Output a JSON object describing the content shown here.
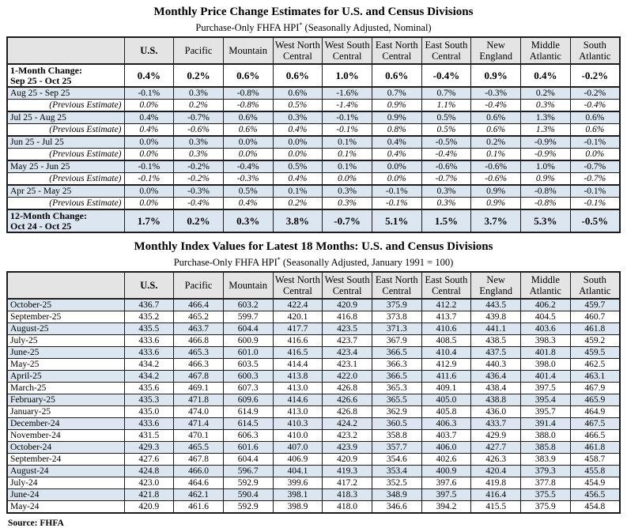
{
  "colors": {
    "header_bg": "#e4e4e4",
    "stripe_bg": "#dce6f1",
    "border": "#1c1c1c"
  },
  "source_label": "Source: FHFA",
  "columns": [
    "U.S.",
    "Pacific",
    "Mountain",
    "West North Central",
    "West South Central",
    "East North Central",
    "East South Central",
    "New England",
    "Middle Atlantic",
    "South Atlantic"
  ],
  "table1": {
    "title": "Monthly Price Change Estimates for U.S. and Census Divisions",
    "subtitle_prefix": "Purchase-Only FHFA HPI",
    "subtitle_star": "*",
    "subtitle_suffix": " (Seasonally Adjusted, Nominal)",
    "rows": [
      {
        "type": "bold",
        "label1": "1-Month Change:",
        "label2": "Sep 25 - Oct 25",
        "values": [
          "0.4%",
          "0.2%",
          "0.6%",
          "0.6%",
          "1.0%",
          "0.6%",
          "-0.4%",
          "0.9%",
          "0.4%",
          "-0.2%"
        ]
      },
      {
        "type": "month",
        "label": "Aug 25 - Sep 25",
        "values": [
          "-0.1%",
          "0.3%",
          "-0.8%",
          "0.6%",
          "-1.6%",
          "0.7%",
          "0.7%",
          "-0.3%",
          "0.2%",
          "-0.2%"
        ]
      },
      {
        "type": "prev",
        "label": "(Previous Estimate)",
        "values": [
          "0.0%",
          "0.2%",
          "-0.8%",
          "0.5%",
          "-1.4%",
          "0.9%",
          "1.1%",
          "-0.4%",
          "0.3%",
          "-0.4%"
        ]
      },
      {
        "type": "month",
        "label": "Jul 25 - Aug 25",
        "values": [
          "0.4%",
          "-0.7%",
          "0.6%",
          "0.3%",
          "-0.1%",
          "0.9%",
          "0.5%",
          "0.6%",
          "1.3%",
          "0.6%"
        ]
      },
      {
        "type": "prev",
        "label": "(Previous Estimate)",
        "values": [
          "0.4%",
          "-0.6%",
          "0.6%",
          "0.4%",
          "-0.1%",
          "0.8%",
          "0.5%",
          "0.6%",
          "1.3%",
          "0.6%"
        ]
      },
      {
        "type": "month",
        "label": "Jun 25 - Jul 25",
        "values": [
          "0.0%",
          "0.3%",
          "0.0%",
          "0.0%",
          "0.1%",
          "0.4%",
          "-0.5%",
          "0.2%",
          "-0.9%",
          "-0.1%"
        ]
      },
      {
        "type": "prev",
        "label": "(Previous Estimate)",
        "values": [
          "0.0%",
          "0.3%",
          "0.0%",
          "0.0%",
          "0.1%",
          "0.4%",
          "-0.4%",
          "0.1%",
          "-0.9%",
          "0.0%"
        ]
      },
      {
        "type": "month",
        "label": "May 25 - Jun 25",
        "values": [
          "-0.1%",
          "-0.2%",
          "-0.4%",
          "0.5%",
          "0.1%",
          "0.0%",
          "-0.6%",
          "-0.6%",
          "1.0%",
          "-0.7%"
        ]
      },
      {
        "type": "prev",
        "label": "(Previous Estimate)",
        "values": [
          "-0.1%",
          "-0.2%",
          "-0.3%",
          "0.4%",
          "0.0%",
          "0.0%",
          "-0.7%",
          "-0.6%",
          "0.9%",
          "-0.7%"
        ]
      },
      {
        "type": "month",
        "label": "Apr 25 - May 25",
        "values": [
          "0.0%",
          "-0.3%",
          "0.5%",
          "0.1%",
          "0.3%",
          "-0.1%",
          "0.3%",
          "0.9%",
          "-0.8%",
          "-0.1%"
        ]
      },
      {
        "type": "prev",
        "label": "(Previous Estimate)",
        "values": [
          "0.0%",
          "-0.4%",
          "0.4%",
          "0.2%",
          "0.3%",
          "-0.1%",
          "0.3%",
          "0.9%",
          "-0.8%",
          "-0.1%"
        ]
      },
      {
        "type": "total",
        "label1": "12-Month Change:",
        "label2": "Oct 24 - Oct 25",
        "values": [
          "1.7%",
          "0.2%",
          "0.3%",
          "3.8%",
          "-0.7%",
          "5.1%",
          "1.5%",
          "3.7%",
          "5.3%",
          "-0.5%"
        ]
      }
    ]
  },
  "table2": {
    "title": "Monthly Index Values for Latest 18 Months: U.S. and Census Divisions",
    "subtitle_prefix": "Purchase-Only FHFA HPI",
    "subtitle_star": "*",
    "subtitle_suffix": " (Seasonally Adjusted, January 1991 = 100)",
    "rows": [
      {
        "label": "October-25",
        "values": [
          "436.7",
          "466.4",
          "603.2",
          "422.4",
          "420.9",
          "375.9",
          "412.2",
          "443.5",
          "406.2",
          "459.7"
        ]
      },
      {
        "label": "September-25",
        "values": [
          "435.2",
          "465.2",
          "599.7",
          "420.1",
          "416.8",
          "373.8",
          "413.7",
          "439.8",
          "404.5",
          "460.7"
        ]
      },
      {
        "label": "August-25",
        "values": [
          "435.5",
          "463.7",
          "604.4",
          "417.7",
          "423.5",
          "371.3",
          "410.6",
          "441.1",
          "403.6",
          "461.8"
        ]
      },
      {
        "label": "July-25",
        "values": [
          "433.6",
          "466.8",
          "600.9",
          "416.6",
          "423.7",
          "367.9",
          "408.5",
          "438.5",
          "398.3",
          "459.2"
        ]
      },
      {
        "label": "June-25",
        "values": [
          "433.6",
          "465.3",
          "601.0",
          "416.5",
          "423.4",
          "366.5",
          "410.4",
          "437.5",
          "401.8",
          "459.5"
        ]
      },
      {
        "label": "May-25",
        "values": [
          "434.2",
          "466.3",
          "603.5",
          "414.4",
          "423.1",
          "366.3",
          "412.9",
          "440.3",
          "398.0",
          "462.5"
        ]
      },
      {
        "label": "April-25",
        "values": [
          "434.2",
          "467.8",
          "600.3",
          "413.8",
          "422.0",
          "366.5",
          "411.6",
          "436.4",
          "401.4",
          "463.1"
        ]
      },
      {
        "label": "March-25",
        "values": [
          "435.6",
          "469.1",
          "607.3",
          "413.0",
          "426.8",
          "365.3",
          "409.1",
          "438.4",
          "397.5",
          "467.9"
        ]
      },
      {
        "label": "February-25",
        "values": [
          "435.3",
          "471.8",
          "609.6",
          "414.6",
          "426.6",
          "365.5",
          "405.0",
          "438.8",
          "395.4",
          "465.9"
        ]
      },
      {
        "label": "January-25",
        "values": [
          "435.0",
          "474.0",
          "614.9",
          "413.0",
          "426.8",
          "362.9",
          "405.8",
          "436.0",
          "395.7",
          "464.9"
        ]
      },
      {
        "label": "December-24",
        "values": [
          "433.6",
          "471.4",
          "614.5",
          "410.3",
          "424.2",
          "360.5",
          "406.3",
          "433.7",
          "391.4",
          "467.5"
        ]
      },
      {
        "label": "November-24",
        "values": [
          "431.5",
          "470.1",
          "606.3",
          "410.0",
          "423.2",
          "358.8",
          "403.7",
          "429.9",
          "388.0",
          "466.5"
        ]
      },
      {
        "label": "October-24",
        "values": [
          "429.3",
          "465.5",
          "601.6",
          "407.0",
          "423.9",
          "357.7",
          "406.0",
          "427.7",
          "385.8",
          "461.8"
        ]
      },
      {
        "label": "September-24",
        "values": [
          "427.6",
          "467.8",
          "604.4",
          "406.9",
          "420.9",
          "354.6",
          "402.6",
          "426.3",
          "383.9",
          "458.7"
        ]
      },
      {
        "label": "August-24",
        "values": [
          "424.8",
          "466.0",
          "596.7",
          "404.1",
          "419.3",
          "353.4",
          "400.9",
          "420.4",
          "379.3",
          "455.8"
        ]
      },
      {
        "label": "July-24",
        "values": [
          "423.0",
          "464.6",
          "592.9",
          "399.6",
          "417.2",
          "352.5",
          "397.6",
          "419.8",
          "377.8",
          "454.9"
        ]
      },
      {
        "label": "June-24",
        "values": [
          "421.8",
          "462.1",
          "590.4",
          "398.1",
          "418.3",
          "348.9",
          "397.5",
          "416.4",
          "375.5",
          "456.5"
        ]
      },
      {
        "label": "May-24",
        "values": [
          "420.9",
          "461.6",
          "592.9",
          "398.9",
          "418.0",
          "346.6",
          "394.2",
          "415.5",
          "375.9",
          "454.8"
        ]
      }
    ]
  }
}
